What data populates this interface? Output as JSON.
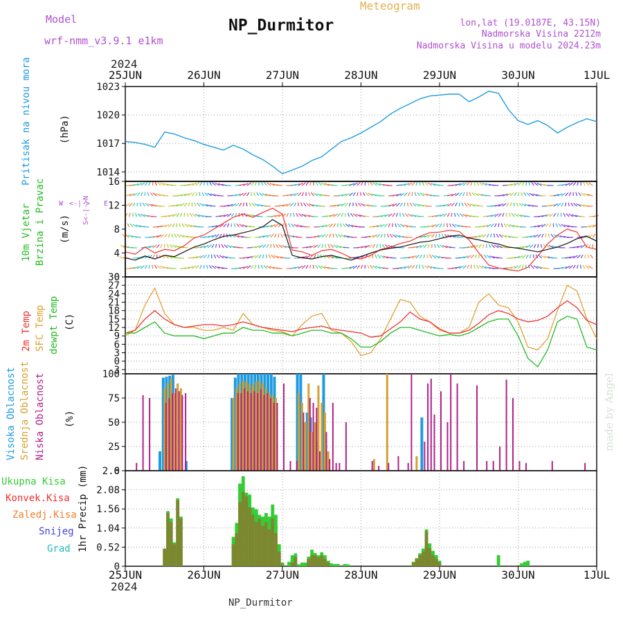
{
  "header": {
    "model_label": "Model",
    "model_name": "wrf-nmm_v3.9.1 e1km",
    "station": "NP_Durmitor",
    "product": "Meteogram",
    "lonlat": "lon,lat (19.0187E, 43.15N)",
    "elevation": "Nadmorska Visina 2212m",
    "elevation_model": "Nadmorska Visina u modelu 2024.23m",
    "year_top": "2024",
    "year_bottom": "2024",
    "footer_station": "NP_Durmitor",
    "credit": "made by Angel"
  },
  "x_axis": {
    "day_labels": [
      "25JUN",
      "26JUN",
      "27JUN",
      "28JUN",
      "29JUN",
      "30JUN",
      "1JUL"
    ],
    "t_start_hours": 0,
    "t_end_hours": 144
  },
  "colors": {
    "pressure": "#1e9be0",
    "t2m": "#ee3030",
    "sfc": "#e0a030",
    "dewpt": "#22bb22",
    "high_cloud": "#1e9be0",
    "mid_cloud": "#d4a030",
    "low_cloud": "#b0208a",
    "precip_total": "#33cc33",
    "precip_conv": "#ee3030",
    "snow": "#4444dd",
    "graupel": "#22bbbb"
  },
  "chart_data": [
    {
      "type": "line",
      "panel": "pressure",
      "ylabel": "Pritisak na nivou mora",
      "unit": "(hPa)",
      "ylim": [
        1013,
        1023
      ],
      "yticks": [
        1014,
        1017,
        1020,
        1023
      ],
      "grid": true,
      "x": [
        0,
        3,
        6,
        9,
        12,
        15,
        18,
        21,
        24,
        27,
        30,
        33,
        36,
        39,
        42,
        45,
        48,
        51,
        54,
        57,
        60,
        63,
        66,
        69,
        72,
        75,
        78,
        81,
        84,
        87,
        90,
        93,
        96,
        99,
        102,
        105,
        108,
        111,
        114,
        117,
        120,
        123,
        126,
        129,
        132,
        135,
        138,
        141,
        144
      ],
      "series": [
        {
          "name": "Pritisak na nivou mora",
          "values": [
            1017.2,
            1017.1,
            1016.9,
            1016.6,
            1018.2,
            1018.0,
            1017.6,
            1017.3,
            1016.9,
            1016.6,
            1016.3,
            1016.8,
            1016.4,
            1015.8,
            1015.3,
            1014.6,
            1013.8,
            1014.2,
            1014.6,
            1015.2,
            1015.6,
            1016.4,
            1017.2,
            1017.6,
            1018.1,
            1018.7,
            1019.3,
            1020.1,
            1020.7,
            1021.2,
            1021.7,
            1022.0,
            1022.1,
            1022.2,
            1022.2,
            1021.4,
            1021.9,
            1022.5,
            1022.3,
            1020.6,
            1019.4,
            1019.0,
            1019.4,
            1018.9,
            1018.1,
            1018.7,
            1019.2,
            1019.6,
            1019.3
          ]
        }
      ]
    },
    {
      "type": "line",
      "panel": "wind",
      "ylabel": "10m Vjetar Brzina i Pravac",
      "unit": "(m/s)",
      "ylim": [
        0,
        16
      ],
      "yticks": [
        0,
        4,
        8,
        12,
        16
      ],
      "direction_key": "W <-|-> E, S <-|-> N",
      "x": [
        0,
        3,
        6,
        9,
        12,
        15,
        18,
        21,
        24,
        27,
        30,
        33,
        36,
        39,
        42,
        45,
        48,
        51,
        54,
        57,
        60,
        63,
        66,
        69,
        72,
        75,
        78,
        81,
        84,
        87,
        90,
        93,
        96,
        99,
        102,
        105,
        108,
        111,
        114,
        117,
        120,
        123,
        126,
        129,
        132,
        135,
        138,
        141,
        144
      ],
      "series": [
        {
          "name": "10m wind speed",
          "values": [
            3.2,
            2.8,
            3.5,
            3.0,
            3.6,
            3.4,
            4.2,
            5.0,
            5.5,
            6.2,
            6.8,
            7.0,
            7.4,
            7.8,
            8.4,
            9.6,
            8.6,
            3.6,
            3.2,
            3.0,
            3.4,
            3.6,
            3.2,
            2.8,
            3.4,
            4.0,
            4.5,
            4.8,
            5.0,
            5.4,
            5.8,
            6.0,
            6.4,
            6.8,
            7.0,
            6.5,
            6.2,
            5.8,
            5.5,
            5.0,
            4.8,
            4.5,
            4.2,
            4.6,
            5.0,
            5.6,
            6.4,
            6.8,
            6.0
          ]
        },
        {
          "name": "gust",
          "values": [
            4.2,
            3.8,
            5.0,
            4.0,
            4.6,
            4.4,
            5.2,
            6.5,
            7.0,
            8.0,
            9.0,
            10.0,
            10.5,
            10.0,
            10.8,
            11.5,
            10.5,
            4.5,
            4.2,
            3.6,
            4.4,
            4.6,
            4.0,
            3.2,
            3.0,
            3.6,
            4.6,
            5.0,
            5.6,
            6.0,
            6.8,
            7.4,
            7.5,
            7.8,
            7.6,
            6.2,
            4.0,
            2.0,
            1.5,
            1.2,
            1.0,
            1.6,
            3.5,
            5.5,
            7.0,
            8.0,
            7.5,
            5.0,
            4.6
          ]
        }
      ]
    },
    {
      "type": "line",
      "panel": "temperature",
      "ylabel": "2m Temp, SFC Temp, dewpt Temp",
      "unit": "(C)",
      "ylim": [
        -4.5,
        30
      ],
      "yticks": [
        -3,
        0,
        3,
        6,
        9,
        12,
        15,
        18,
        21,
        24,
        27,
        30
      ],
      "grid": true,
      "x": [
        0,
        3,
        6,
        9,
        12,
        15,
        18,
        21,
        24,
        27,
        30,
        33,
        36,
        39,
        42,
        45,
        48,
        51,
        54,
        57,
        60,
        63,
        66,
        69,
        72,
        75,
        78,
        81,
        84,
        87,
        90,
        93,
        96,
        99,
        102,
        105,
        108,
        111,
        114,
        117,
        120,
        123,
        126,
        129,
        132,
        135,
        138,
        141,
        144
      ],
      "series": [
        {
          "name": "2m Temp",
          "values": [
            10,
            11,
            15,
            18,
            15,
            13,
            12,
            12.5,
            13,
            13,
            12.5,
            13,
            14,
            13,
            12,
            11.5,
            11,
            10.5,
            11.5,
            12,
            12.5,
            11.5,
            11,
            10.5,
            10,
            8.5,
            9,
            11.5,
            14,
            17.5,
            15,
            14,
            11.5,
            10,
            10,
            11,
            13.5,
            16.5,
            18,
            17,
            15,
            14,
            14.5,
            16,
            19,
            21.5,
            19,
            14.5,
            13
          ]
        },
        {
          "name": "SFC Temp",
          "values": [
            9,
            11,
            20,
            26,
            17,
            13,
            12,
            12,
            11,
            11,
            12,
            11,
            17,
            13,
            12,
            11,
            10.5,
            9,
            13,
            16,
            17,
            11,
            10,
            7,
            2,
            3,
            8,
            15,
            22,
            21,
            16,
            14,
            11,
            10,
            10,
            12,
            21,
            24,
            20,
            19,
            14,
            5,
            4,
            8,
            18,
            27,
            25,
            15,
            8
          ]
        },
        {
          "name": "dewpt Temp",
          "values": [
            10,
            10,
            12,
            14,
            10,
            9,
            9,
            9,
            8,
            9,
            10,
            10,
            12,
            11,
            11,
            10,
            10,
            9,
            10,
            11,
            11,
            10,
            10,
            8,
            5,
            5,
            7,
            10,
            12,
            12,
            11,
            10,
            9,
            9.5,
            9,
            10,
            12,
            14,
            15,
            15,
            9,
            1,
            -2,
            4,
            14,
            16,
            15,
            5,
            4
          ]
        }
      ]
    },
    {
      "type": "bar",
      "panel": "cloud",
      "ylabel": "Visoka Oblacnost, Srednja Oblacnost, Niska Oblacnost",
      "unit": "(%)",
      "ylim": [
        0,
        100
      ],
      "yticks": [
        0,
        25,
        50,
        75,
        100
      ],
      "grid": true,
      "x": [
        3,
        5,
        7,
        11,
        12,
        13,
        14,
        15,
        16,
        17,
        18,
        19,
        21,
        33,
        34,
        35,
        36,
        37,
        38,
        39,
        40,
        41,
        42,
        43,
        44,
        45,
        46,
        47,
        48,
        50,
        52,
        53,
        54,
        55,
        56,
        57,
        58,
        59,
        60,
        61,
        62,
        63,
        64,
        65,
        67,
        71,
        75,
        76,
        77,
        80,
        83,
        86,
        87,
        89,
        91,
        92,
        93,
        94,
        96,
        98,
        99,
        101,
        103,
        107,
        110,
        112,
        114,
        116,
        118,
        120,
        122,
        130,
        140
      ],
      "series": [
        {
          "name": "Visoka Oblacnost",
          "values": [
            0,
            0,
            0,
            20,
            96,
            97,
            98,
            99,
            0,
            0,
            0,
            10,
            0,
            75,
            96,
            100,
            100,
            100,
            100,
            100,
            100,
            100,
            100,
            100,
            100,
            100,
            97,
            0,
            0,
            0,
            0,
            100,
            100,
            0,
            60,
            55,
            0,
            30,
            0,
            100,
            0,
            0,
            0,
            0,
            0,
            0,
            0,
            0,
            0,
            0,
            0,
            0,
            0,
            0,
            55,
            0,
            0,
            0,
            0,
            0,
            0,
            0,
            0,
            0,
            0,
            0,
            0,
            0,
            0,
            0,
            0,
            0,
            0
          ]
        },
        {
          "name": "Srednja Oblacnost",
          "values": [
            0,
            0,
            0,
            0,
            85,
            90,
            95,
            80,
            90,
            85,
            0,
            0,
            0,
            75,
            85,
            90,
            93,
            92,
            90,
            88,
            92,
            93,
            90,
            85,
            80,
            78,
            75,
            0,
            0,
            0,
            0,
            80,
            70,
            50,
            90,
            40,
            50,
            88,
            70,
            60,
            20,
            0,
            0,
            0,
            0,
            0,
            0,
            12,
            0,
            100,
            0,
            0,
            0,
            15,
            0,
            0,
            0,
            0,
            0,
            0,
            0,
            0,
            0,
            0,
            0,
            0,
            0,
            0,
            0,
            0,
            0,
            0,
            0
          ]
        },
        {
          "name": "Niska Oblacnost",
          "values": [
            8,
            78,
            75,
            0,
            70,
            75,
            80,
            85,
            82,
            78,
            80,
            0,
            0,
            0,
            80,
            80,
            85,
            82,
            80,
            82,
            80,
            84,
            78,
            80,
            75,
            70,
            70,
            0,
            90,
            10,
            10,
            0,
            60,
            0,
            75,
            70,
            65,
            20,
            0,
            40,
            12,
            70,
            8,
            8,
            50,
            0,
            10,
            0,
            5,
            8,
            15,
            8,
            100,
            0,
            30,
            90,
            95,
            58,
            82,
            50,
            100,
            90,
            10,
            88,
            10,
            10,
            25,
            94,
            75,
            10,
            8,
            10,
            8
          ]
        }
      ]
    },
    {
      "type": "bar",
      "panel": "precip",
      "ylabel": "1hr Precip",
      "unit": "(mm)",
      "ylim": [
        0,
        2.6
      ],
      "yticks": [
        0,
        0.52,
        1.04,
        1.56,
        2.08,
        2.6
      ],
      "legend": [
        "Ukupna Kisa",
        "Konvek.Kisa",
        "Zaledj.Kisa",
        "Snijeg",
        "Grad"
      ],
      "grid": true,
      "x": [
        12,
        13,
        14,
        15,
        16,
        17,
        33,
        34,
        35,
        36,
        37,
        38,
        39,
        40,
        41,
        42,
        43,
        44,
        45,
        46,
        47,
        48,
        50,
        51,
        52,
        53,
        54,
        55,
        56,
        57,
        58,
        59,
        60,
        61,
        62,
        63,
        64,
        65,
        67,
        68,
        88,
        89,
        90,
        91,
        92,
        93,
        94,
        95,
        96,
        114,
        121,
        122,
        123
      ],
      "series": [
        {
          "name": "Ukupna Kisa",
          "values": [
            0.48,
            1.5,
            1.3,
            0.65,
            1.85,
            1.35,
            0.8,
            1.18,
            2.25,
            2.45,
            2.0,
            1.95,
            1.6,
            1.55,
            1.4,
            1.35,
            1.45,
            1.35,
            1.68,
            1.4,
            0.6,
            0.1,
            0.12,
            0.3,
            0.35,
            0.05,
            0.1,
            0.1,
            0.26,
            0.45,
            0.36,
            0.3,
            0.38,
            0.3,
            0.15,
            0.08,
            0.06,
            0.06,
            0.06,
            0.05,
            0.12,
            0.22,
            0.35,
            0.48,
            1.0,
            0.62,
            0.42,
            0.3,
            0.15,
            0.3,
            0.08,
            0.12,
            0.15
          ]
        },
        {
          "name": "Konvek.Kisa",
          "values": [
            0.48,
            1.45,
            1.2,
            0.6,
            1.8,
            1.3,
            0.6,
            0.9,
            1.75,
            2.02,
            1.9,
            1.6,
            1.4,
            1.2,
            1.3,
            1.1,
            1.2,
            1.0,
            1.3,
            0.9,
            0.4,
            0.05,
            0,
            0.1,
            0.25,
            0,
            0,
            0,
            0.2,
            0.3,
            0.3,
            0.25,
            0.3,
            0.2,
            0.1,
            0,
            0,
            0,
            0,
            0,
            0.1,
            0.2,
            0.3,
            0.4,
            0.95,
            0.5,
            0.3,
            0.2,
            0.1,
            0,
            0,
            0,
            0
          ]
        }
      ]
    }
  ]
}
